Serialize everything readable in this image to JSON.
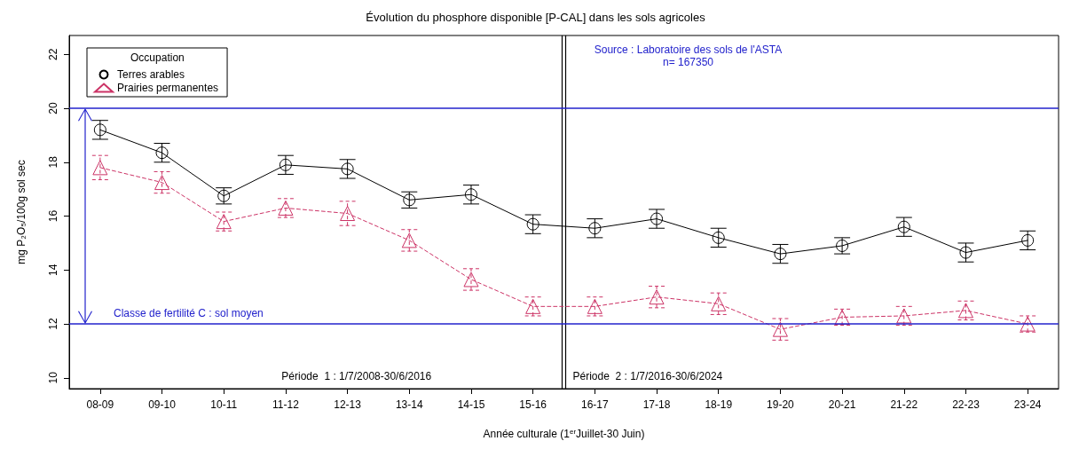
{
  "chart_data": {
    "type": "line",
    "title": "Évolution du phosphore disponible [P-CAL] dans les sols agricoles",
    "xlabel": "Année culturale (1$^{er}$Juillet-30 Juin)",
    "ylabel": "mg P₂O₅/100g sol sec",
    "legend_title": "Occupation",
    "legend": "top left",
    "grid": false,
    "categories": [
      "08-09",
      "09-10",
      "10-11",
      "11-12",
      "12-13",
      "13-14",
      "14-15",
      "15-16",
      "16-17",
      "17-18",
      "18-19",
      "19-20",
      "20-21",
      "21-22",
      "22-23",
      "23-24"
    ],
    "ylim": [
      9.6,
      22.7
    ],
    "yticks": [
      10,
      12,
      14,
      16,
      18,
      20,
      22
    ],
    "series": [
      {
        "name": "Terres arables",
        "color": "#000000",
        "marker": "circle",
        "line_style": "solid",
        "values": [
          19.2,
          18.35,
          16.75,
          17.9,
          17.75,
          16.6,
          16.8,
          15.7,
          15.55,
          15.9,
          15.2,
          14.6,
          14.9,
          15.6,
          14.65,
          15.1
        ],
        "errors": [
          0.35,
          0.35,
          0.3,
          0.35,
          0.35,
          0.3,
          0.35,
          0.35,
          0.35,
          0.35,
          0.35,
          0.35,
          0.3,
          0.35,
          0.35,
          0.35
        ]
      },
      {
        "name": "Prairies permanentes",
        "color": "#cc3366",
        "marker": "triangle",
        "line_style": "dashed",
        "values": [
          17.8,
          17.25,
          15.8,
          16.3,
          16.1,
          15.1,
          13.65,
          12.65,
          12.65,
          13.0,
          12.75,
          11.8,
          12.25,
          12.3,
          12.5,
          12.0
        ],
        "errors": [
          0.45,
          0.4,
          0.35,
          0.35,
          0.45,
          0.4,
          0.4,
          0.35,
          0.35,
          0.4,
          0.4,
          0.4,
          0.3,
          0.35,
          0.35,
          0.3
        ]
      }
    ],
    "ref_lines": [
      {
        "axis": "y",
        "value": 20,
        "color": "#2222cc"
      },
      {
        "axis": "y",
        "value": 12,
        "label": "Classe de fertilité C : sol moyen",
        "color": "#2222cc"
      }
    ],
    "annotations": [
      "Source : Laboratoire des sols de l'ASTA",
      "n= 167350",
      "Période  1 : 1/7/2008-30/6/2016",
      "Période  2 : 1/7/2016-30/6/2024"
    ]
  }
}
